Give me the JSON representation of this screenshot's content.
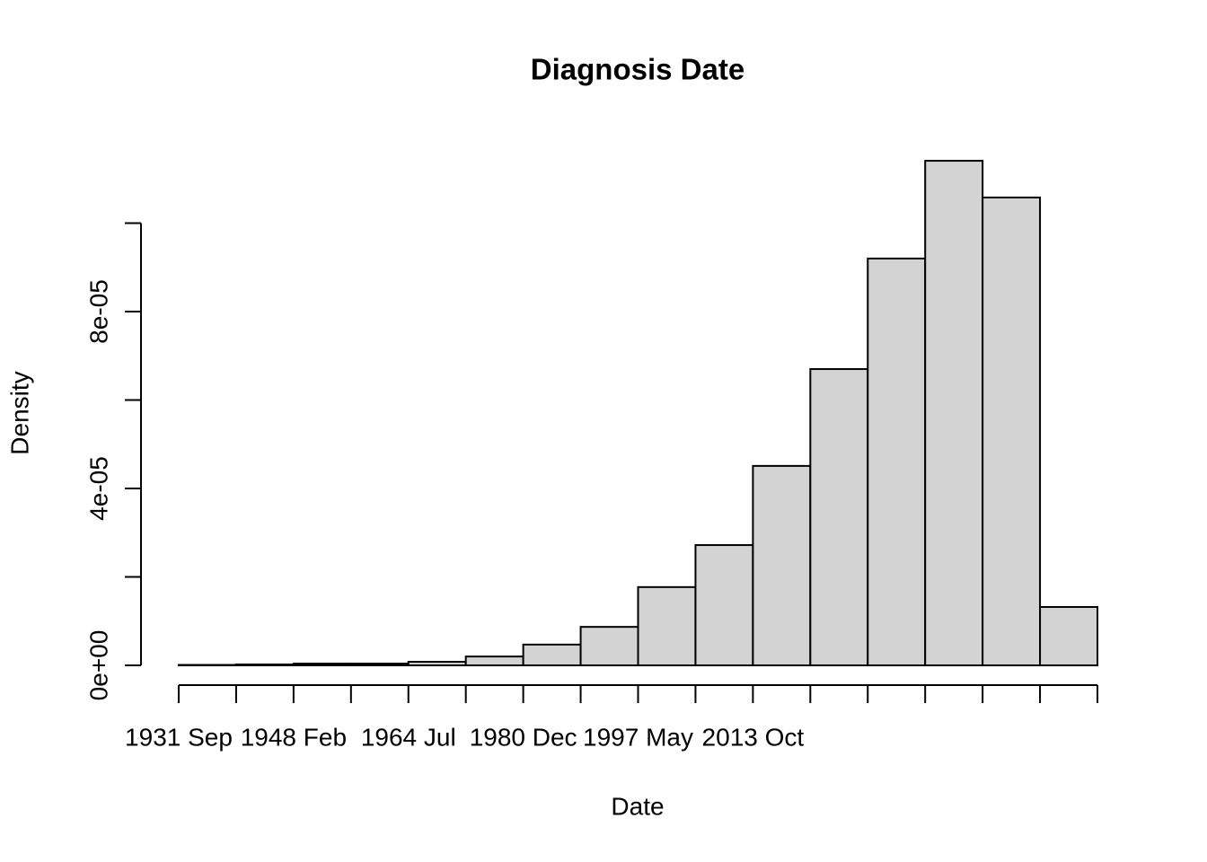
{
  "chart_data": {
    "type": "histogram",
    "title": "Diagnosis Date",
    "xlabel": "Date",
    "ylabel": "Density",
    "bins": [
      "1931 Sep",
      null,
      "1948 Feb",
      null,
      "1964 Jul",
      null,
      "1980 Dec",
      null,
      "1997 May",
      null,
      "2013 Oct",
      null,
      null,
      null,
      null,
      null,
      null
    ],
    "values": [
      1e-07,
      2e-07,
      4e-07,
      4e-07,
      8e-07,
      2e-06,
      4.7e-06,
      8.7e-06,
      1.77e-05,
      2.72e-05,
      4.51e-05,
      6.7e-05,
      9.2e-05,
      0.0001141,
      0.0001058,
      1.32e-05
    ],
    "color": "#d3d3d3",
    "ylim": [
      0,
      0.00012
    ],
    "yticks": [
      {
        "value": 0,
        "label": "0e+00"
      },
      {
        "value": 2e-05
      },
      {
        "value": 4e-05,
        "label": "4e-05"
      },
      {
        "value": 6e-05
      },
      {
        "value": 8e-05,
        "label": "8e-05"
      },
      {
        "value": 0.0001
      }
    ]
  }
}
